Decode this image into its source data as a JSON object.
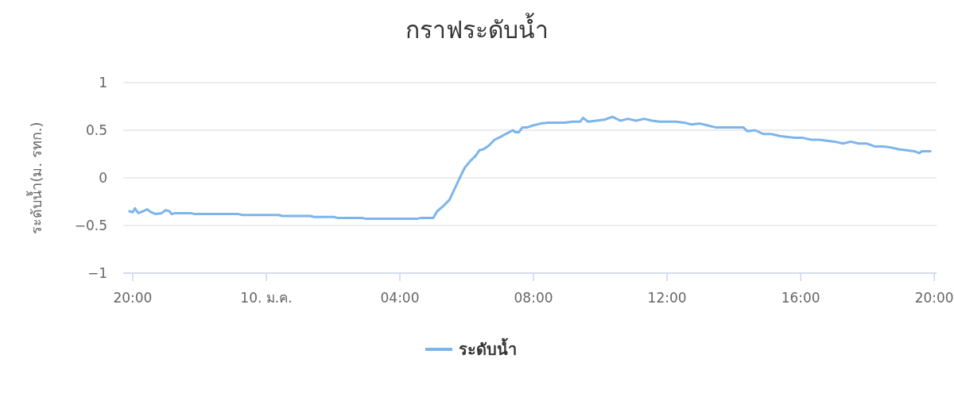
{
  "chart_data": {
    "type": "line",
    "title": "กราฟระดับน้ำ",
    "ylabel": "ระดับน้ำ(ม. รทก.)",
    "xlim": [
      "--01-09T19:43",
      "--01-10T20:04"
    ],
    "ylim": [
      -1,
      1
    ],
    "yticks": [
      -1,
      -0.5,
      0,
      0.5,
      1
    ],
    "xticks": [
      {
        "value": "--01-09T20:00",
        "label": "20:00"
      },
      {
        "value": "--01-10T00:00",
        "label": "10. ม.ค."
      },
      {
        "value": "--01-10T04:00",
        "label": "04:00"
      },
      {
        "value": "--01-10T08:00",
        "label": "08:00"
      },
      {
        "value": "--01-10T12:00",
        "label": "12:00"
      },
      {
        "value": "--01-10T16:00",
        "label": "16:00"
      },
      {
        "value": "--01-10T20:00",
        "label": "20:00"
      }
    ],
    "grid": "y",
    "legend": "bottom",
    "marker": "none",
    "line_style": "solid",
    "series": [
      {
        "name": "ระดับน้ำ",
        "color": "#7cb5ec",
        "x": [
          "--01-09T19:54",
          "--01-09T20:00",
          "--01-09T20:04",
          "--01-09T20:10",
          "--01-09T20:19",
          "--01-09T20:26",
          "--01-09T20:33",
          "--01-09T20:41",
          "--01-09T20:52",
          "--01-09T20:59",
          "--01-09T21:06",
          "--01-09T21:10",
          "--01-09T21:16",
          "--01-09T21:44",
          "--01-09T21:52",
          "--01-09T22:27",
          "--01-09T22:34",
          "--01-09T23:10",
          "--01-09T23:17",
          "--01-10T00:22",
          "--01-10T00:29",
          "--01-10T01:19",
          "--01-10T01:26",
          "--01-10T02:01",
          "--01-10T02:08",
          "--01-10T02:52",
          "--01-10T02:59",
          "--01-10T04:24",
          "--01-10T04:31",
          "--01-10T04:38",
          "--01-10T05:00",
          "--01-10T05:07",
          "--01-10T05:19",
          "--01-10T05:29",
          "--01-10T05:38",
          "--01-10T05:50",
          "--01-10T05:57",
          "--01-10T06:07",
          "--01-10T06:16",
          "--01-10T06:23",
          "--01-10T06:30",
          "--01-10T06:40",
          "--01-10T06:50",
          "--01-10T07:01",
          "--01-10T07:10",
          "--01-10T07:23",
          "--01-10T07:27",
          "--01-10T07:34",
          "--01-10T07:40",
          "--01-10T07:49",
          "--01-10T07:59",
          "--01-10T08:13",
          "--01-10T08:27",
          "--01-10T08:41",
          "--01-10T08:56",
          "--01-10T09:10",
          "--01-10T09:24",
          "--01-10T09:29",
          "--01-10T09:38",
          "--01-10T10:07",
          "--01-10T10:22",
          "--01-10T10:36",
          "--01-10T10:50",
          "--01-10T11:04",
          "--01-10T11:19",
          "--01-10T11:33",
          "--01-10T11:47",
          "--01-10T12:01",
          "--01-10T12:16",
          "--01-10T12:30",
          "--01-10T12:44",
          "--01-10T12:59",
          "--01-10T13:13",
          "--01-10T13:27",
          "--01-10T13:41",
          "--01-10T14:03",
          "--01-10T14:17",
          "--01-10T14:24",
          "--01-10T14:38",
          "--01-10T14:53",
          "--01-10T15:07",
          "--01-10T15:22",
          "--01-10T15:36",
          "--01-10T15:50",
          "--01-10T16:04",
          "--01-10T16:19",
          "--01-10T16:33",
          "--01-10T16:47",
          "--01-10T17:01",
          "--01-10T17:16",
          "--01-10T17:30",
          "--01-10T17:44",
          "--01-10T17:59",
          "--01-10T18:13",
          "--01-10T18:27",
          "--01-10T18:41",
          "--01-10T18:56",
          "--01-10T19:10",
          "--01-10T19:24",
          "--01-10T19:33",
          "--01-10T19:38",
          "--01-10T19:53"
        ],
        "values": [
          -0.35,
          -0.36,
          -0.32,
          -0.37,
          -0.35,
          -0.33,
          -0.36,
          -0.38,
          -0.37,
          -0.34,
          -0.35,
          -0.38,
          -0.37,
          -0.37,
          -0.38,
          -0.38,
          -0.38,
          -0.38,
          -0.39,
          -0.39,
          -0.4,
          -0.4,
          -0.41,
          -0.41,
          -0.42,
          -0.42,
          -0.43,
          -0.43,
          -0.43,
          -0.42,
          -0.42,
          -0.35,
          -0.29,
          -0.23,
          -0.12,
          0.03,
          0.11,
          0.18,
          0.23,
          0.29,
          0.3,
          0.34,
          0.4,
          0.43,
          0.46,
          0.5,
          0.48,
          0.48,
          0.53,
          0.53,
          0.55,
          0.57,
          0.58,
          0.58,
          0.58,
          0.59,
          0.59,
          0.63,
          0.59,
          0.61,
          0.64,
          0.6,
          0.62,
          0.6,
          0.62,
          0.6,
          0.59,
          0.59,
          0.59,
          0.58,
          0.56,
          0.57,
          0.55,
          0.53,
          0.53,
          0.53,
          0.53,
          0.49,
          0.5,
          0.46,
          0.46,
          0.44,
          0.43,
          0.42,
          0.42,
          0.4,
          0.4,
          0.39,
          0.38,
          0.36,
          0.38,
          0.36,
          0.36,
          0.33,
          0.33,
          0.32,
          0.3,
          0.29,
          0.28,
          0.26,
          0.28,
          0.28
        ]
      }
    ]
  }
}
